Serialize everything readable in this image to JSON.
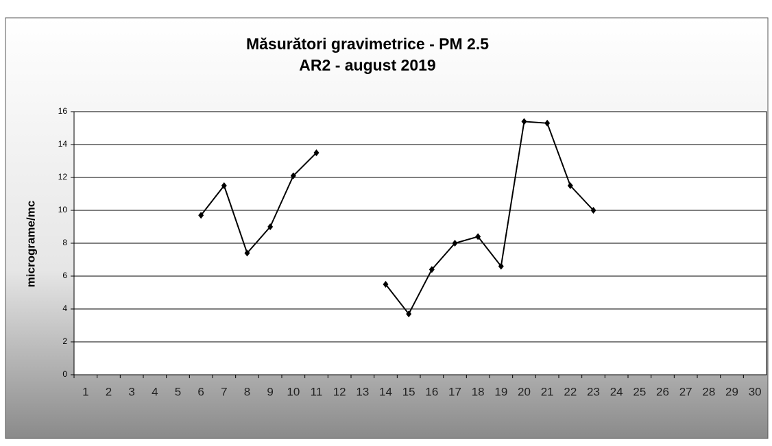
{
  "chart_data": {
    "type": "line",
    "title": "Măsurători gravimetrice - PM 2.5",
    "subtitle": "AR2 - august 2019",
    "y_label": "micrograme/mc",
    "categories": [
      "1",
      "2",
      "3",
      "4",
      "5",
      "6",
      "7",
      "8",
      "9",
      "10",
      "11",
      "12",
      "13",
      "14",
      "15",
      "16",
      "17",
      "18",
      "19",
      "20",
      "21",
      "22",
      "23",
      "24",
      "25",
      "26",
      "27",
      "28",
      "29",
      "30"
    ],
    "series": [
      {
        "name": "PM 2.5",
        "color": "#000000",
        "values": [
          null,
          null,
          null,
          null,
          null,
          9.7,
          11.5,
          7.4,
          9.0,
          12.1,
          13.5,
          null,
          null,
          5.5,
          3.7,
          6.4,
          8.0,
          8.4,
          6.6,
          15.4,
          15.3,
          11.5,
          10.0,
          null,
          null,
          null,
          null,
          null,
          null,
          null
        ]
      }
    ],
    "ylim": [
      0,
      16
    ],
    "yticks": [
      0,
      2,
      4,
      6,
      8,
      10,
      12,
      14,
      16
    ],
    "grid": true
  }
}
